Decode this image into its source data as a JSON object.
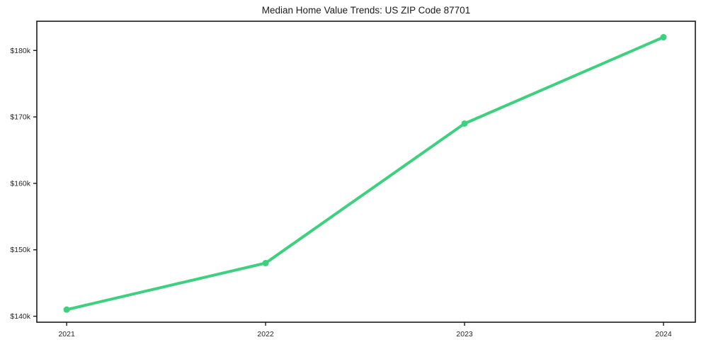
{
  "chart_data": {
    "type": "line",
    "title": "Median Home Value Trends: US ZIP Code 87701",
    "series_name": "Median Home Value",
    "x": [
      2021,
      2022,
      2023,
      2024
    ],
    "values": [
      141,
      148,
      169,
      182
    ],
    "values_note": "y values in thousands of USD as read from axis",
    "x_tick_values": [
      2021,
      2022,
      2023,
      2024
    ],
    "x_tick_labels": [
      "2021",
      "2022",
      "2023",
      "2024"
    ],
    "y_tick_values": [
      140,
      150,
      160,
      170,
      180
    ],
    "y_tick_labels": [
      "$140k",
      "$150k",
      "$160k",
      "$170k",
      "$180k"
    ],
    "xlim": [
      2020.85,
      2024.16
    ],
    "ylim": [
      139.1,
      184.4
    ],
    "grid": false,
    "legend_position": "none",
    "line_color": "#3dd07e",
    "marker": "circle",
    "axis_color": "#1a1a1a",
    "tick_label_color": "#262626",
    "background": "#ffffff"
  }
}
